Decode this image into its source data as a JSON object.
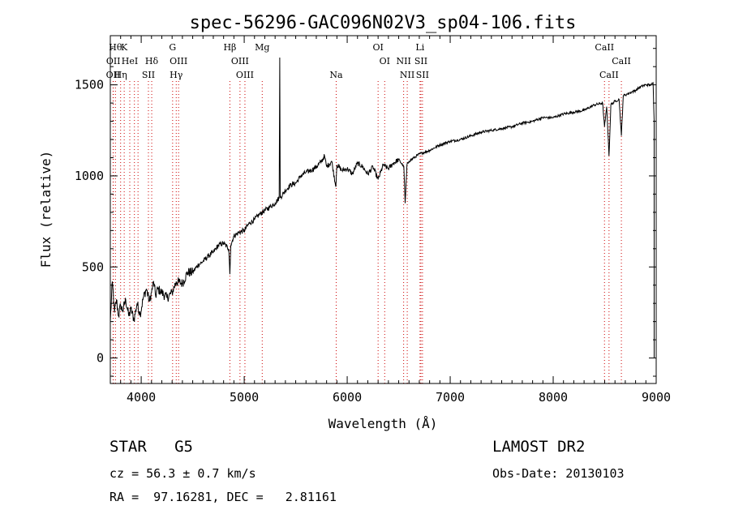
{
  "chart_data": {
    "type": "line",
    "title": "spec-56296-GAC096N02V3_sp04-106.fits",
    "xlabel": "Wavelength (Å)",
    "ylabel": "Flux (relative)",
    "xlim": [
      3700,
      9000
    ],
    "ylim": [
      -140,
      1770
    ],
    "xticks": [
      4000,
      5000,
      6000,
      7000,
      8000,
      9000
    ],
    "yticks": [
      0,
      500,
      1000,
      1500
    ],
    "grid": false,
    "line_color": "#000000",
    "marker_color": "#cc0000",
    "spectrum": {
      "x": [
        3700,
        3720,
        3740,
        3760,
        3780,
        3800,
        3820,
        3850,
        3880,
        3900,
        3930,
        3960,
        3990,
        4020,
        4050,
        4080,
        4100,
        4120,
        4140,
        4160,
        4200,
        4250,
        4300,
        4340,
        4400,
        4450,
        4500,
        4550,
        4600,
        4650,
        4700,
        4750,
        4800,
        4850,
        4861,
        4870,
        4900,
        4950,
        5000,
        5050,
        5100,
        5150,
        5200,
        5250,
        5300,
        5340,
        5345,
        5350,
        5400,
        5450,
        5500,
        5550,
        5600,
        5650,
        5700,
        5750,
        5780,
        5800,
        5850,
        5890,
        5900,
        5950,
        6000,
        6050,
        6100,
        6150,
        6200,
        6250,
        6300,
        6350,
        6400,
        6450,
        6500,
        6550,
        6563,
        6580,
        6600,
        6650,
        6700,
        6800,
        6900,
        7000,
        7100,
        7200,
        7300,
        7400,
        7500,
        7600,
        7700,
        7800,
        7900,
        8000,
        8100,
        8200,
        8300,
        8400,
        8480,
        8498,
        8520,
        8542,
        8560,
        8600,
        8640,
        8662,
        8680,
        8720,
        8760,
        8800,
        8850,
        8900,
        8950,
        8970,
        8980
      ],
      "y": [
        200,
        420,
        250,
        320,
        230,
        290,
        260,
        320,
        230,
        270,
        210,
        300,
        240,
        330,
        380,
        310,
        360,
        420,
        340,
        380,
        360,
        330,
        360,
        420,
        410,
        470,
        470,
        510,
        530,
        560,
        580,
        620,
        630,
        600,
        460,
        620,
        670,
        690,
        700,
        740,
        760,
        790,
        810,
        830,
        850,
        880,
        1650,
        880,
        920,
        950,
        960,
        1000,
        1020,
        1030,
        1050,
        1080,
        1110,
        1050,
        1080,
        940,
        1060,
        1030,
        1040,
        1010,
        1070,
        1050,
        1010,
        1050,
        980,
        1060,
        1040,
        1070,
        1090,
        1050,
        850,
        1060,
        1080,
        1100,
        1120,
        1140,
        1170,
        1190,
        1200,
        1220,
        1240,
        1250,
        1260,
        1270,
        1290,
        1300,
        1320,
        1320,
        1340,
        1350,
        1360,
        1390,
        1400,
        1270,
        1380,
        1110,
        1390,
        1410,
        1420,
        1220,
        1440,
        1450,
        1460,
        1470,
        1490,
        1500,
        1500,
        1510,
        1300
      ]
    },
    "line_markers": [
      {
        "x": 3750,
        "row": 0,
        "label": "Hθ"
      },
      {
        "x": 3835,
        "row": 0,
        "label": "K"
      },
      {
        "x": 3729,
        "row": 1,
        "label": "OII"
      },
      {
        "x": 3889,
        "row": 1,
        "label": "HeI"
      },
      {
        "x": 3727,
        "row": 2,
        "label": "OII"
      },
      {
        "x": 3800,
        "row": 2,
        "label": "Hη"
      },
      {
        "x": 3934,
        "row": null,
        "label": ""
      },
      {
        "x": 3969,
        "row": null,
        "label": ""
      },
      {
        "x": 4102,
        "row": 1,
        "label": "Hδ"
      },
      {
        "x": 4070,
        "row": 2,
        "label": "SII"
      },
      {
        "x": 4305,
        "row": 0,
        "label": "G"
      },
      {
        "x": 4363,
        "row": 1,
        "label": "OIII"
      },
      {
        "x": 4340,
        "row": 2,
        "label": "Hγ"
      },
      {
        "x": 4861,
        "row": 0,
        "label": "Hβ"
      },
      {
        "x": 4959,
        "row": 1,
        "label": "OIII"
      },
      {
        "x": 5007,
        "row": 2,
        "label": "OIII"
      },
      {
        "x": 5175,
        "row": 0,
        "label": "Mg"
      },
      {
        "x": 5893,
        "row": 2,
        "label": "Na"
      },
      {
        "x": 6300,
        "row": 0,
        "label": "OI"
      },
      {
        "x": 6364,
        "row": 1,
        "label": "OI"
      },
      {
        "x": 6548,
        "row": 1,
        "label": "NII"
      },
      {
        "x": 6583,
        "row": 2,
        "label": "NII"
      },
      {
        "x": 6707,
        "row": 0,
        "label": "Li"
      },
      {
        "x": 6716,
        "row": 1,
        "label": "SII"
      },
      {
        "x": 6731,
        "row": 2,
        "label": "SII"
      },
      {
        "x": 8498,
        "row": 0,
        "label": "CaII"
      },
      {
        "x": 8662,
        "row": 1,
        "label": "CaII"
      },
      {
        "x": 8542,
        "row": 2,
        "label": "CaII"
      }
    ]
  },
  "info": {
    "class_line": "STAR   G5",
    "survey": "LAMOST DR2",
    "cz": "cz = 56.3 ± 0.7 km/s",
    "obs_date": "Obs-Date: 20130103",
    "radec": "RA =  97.16281, DEC =   2.81161"
  }
}
